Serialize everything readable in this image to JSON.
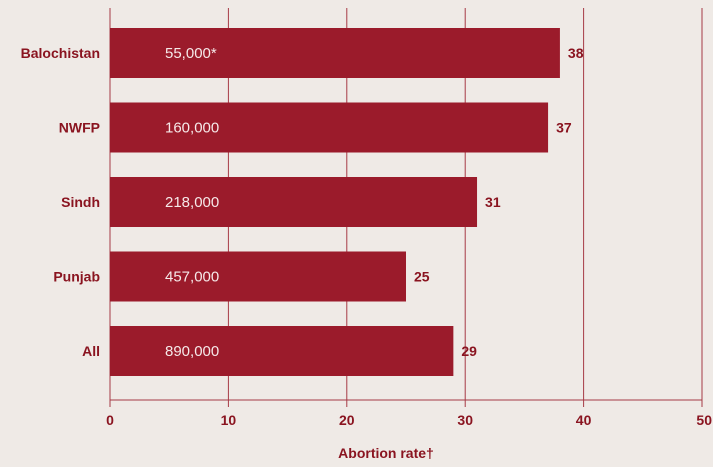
{
  "chart_data": {
    "type": "bar",
    "orientation": "horizontal",
    "categories": [
      "Balochistan",
      "NWFP",
      "Sindh",
      "Punjab",
      "All"
    ],
    "values": [
      38,
      37,
      31,
      25,
      29
    ],
    "bar_labels": [
      "55,000*",
      "160,000",
      "218,000",
      "457,000",
      "890,000"
    ],
    "value_labels": [
      "38",
      "37",
      "31",
      "25",
      "29"
    ],
    "xlabel": "Abortion rate†",
    "xlim": [
      0,
      50
    ],
    "xticks": [
      "0",
      "10",
      "20",
      "30",
      "40",
      "50"
    ],
    "grid": "vertical",
    "colors": {
      "bar": "#9b1b2b",
      "gridline": "#a63a45",
      "text": "#8a1420",
      "bar_text": "#f6e9e9",
      "background": "#efeae6"
    }
  }
}
